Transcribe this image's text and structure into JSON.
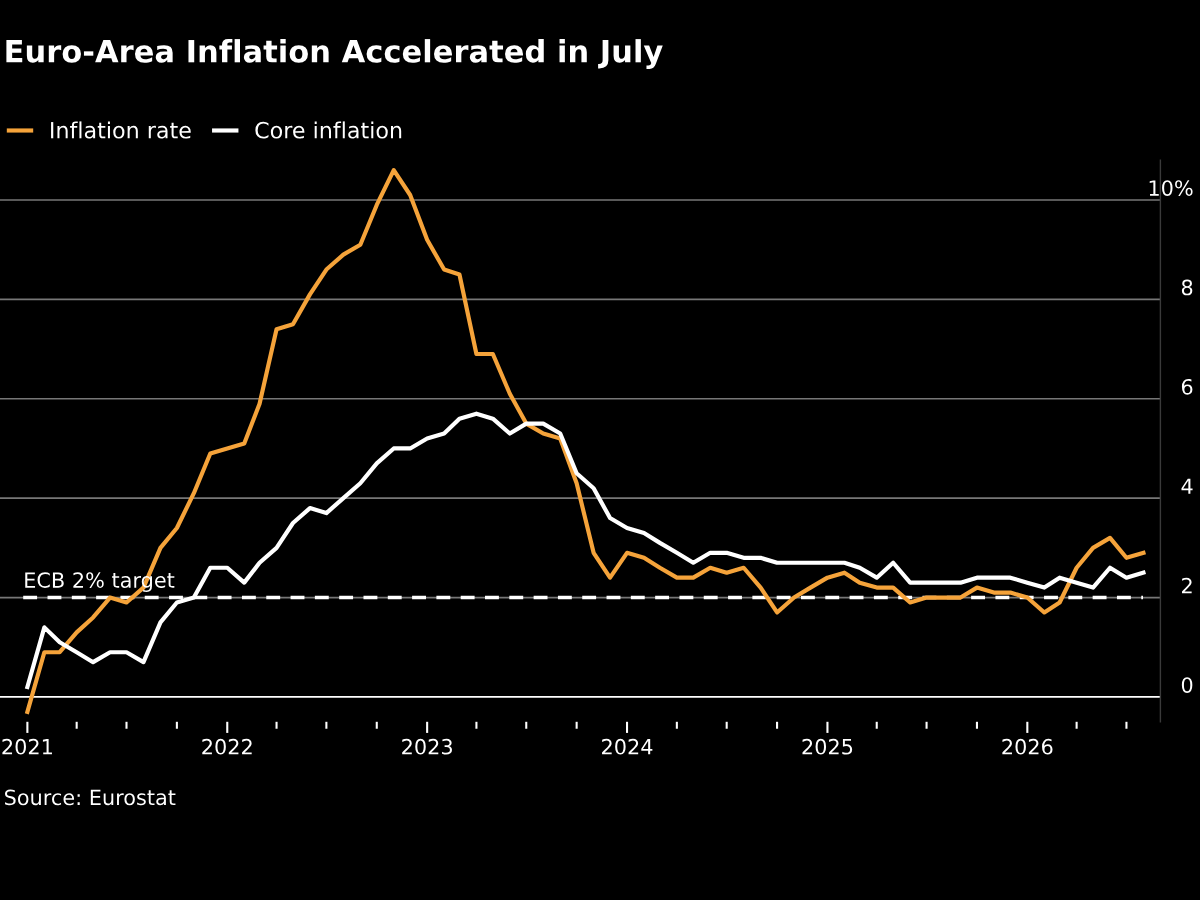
{
  "chart_data": {
    "type": "line",
    "title": "Euro-Area Inflation Accelerated in July",
    "x": [
      "2021-01",
      "2021-02",
      "2021-03",
      "2021-04",
      "2021-05",
      "2021-06",
      "2021-07",
      "2021-08",
      "2021-09",
      "2021-10",
      "2021-11",
      "2021-12",
      "2022-01",
      "2022-02",
      "2022-03",
      "2022-04",
      "2022-05",
      "2022-06",
      "2022-07",
      "2022-08",
      "2022-09",
      "2022-10",
      "2022-11",
      "2022-12",
      "2023-01",
      "2023-02",
      "2023-03",
      "2023-04",
      "2023-05",
      "2023-06",
      "2023-07",
      "2023-08",
      "2023-09",
      "2023-10",
      "2023-11",
      "2023-12",
      "2024-01",
      "2024-02",
      "2024-03",
      "2024-04",
      "2024-05",
      "2024-06",
      "2024-07",
      "2024-08",
      "2024-09",
      "2024-10",
      "2024-11",
      "2024-12",
      "2025-01",
      "2025-02",
      "2025-03",
      "2025-04",
      "2025-05",
      "2025-06",
      "2025-07",
      "2025-08",
      "2025-09",
      "2025-10",
      "2025-11",
      "2025-12",
      "2026-01",
      "2026-02",
      "2026-03",
      "2026-04",
      "2026-05",
      "2026-06",
      "2026-07",
      "2026-08"
    ],
    "series": [
      {
        "name": "Inflation rate",
        "color": "#f5a33a",
        "values": [
          -0.3,
          0.9,
          0.9,
          1.3,
          1.6,
          2.0,
          1.9,
          2.2,
          3.0,
          3.4,
          4.1,
          4.9,
          5.0,
          5.1,
          5.9,
          7.4,
          7.5,
          8.1,
          8.6,
          8.9,
          9.1,
          9.9,
          10.6,
          10.1,
          9.2,
          8.6,
          8.5,
          6.9,
          6.9,
          6.1,
          5.5,
          5.3,
          5.2,
          4.3,
          2.9,
          2.4,
          2.9,
          2.8,
          2.6,
          2.4,
          2.4,
          2.6,
          2.5,
          2.6,
          2.2,
          1.7,
          2.0,
          2.2,
          2.4,
          2.5,
          2.3,
          2.2,
          2.2,
          1.9,
          2.0,
          2.0,
          2.0,
          2.2,
          2.1,
          2.1,
          2.0,
          1.7,
          1.9,
          2.6,
          3.0,
          3.2,
          2.8,
          2.9
        ]
      },
      {
        "name": "Core inflation",
        "color": "#ffffff",
        "values": [
          0.2,
          1.4,
          1.1,
          0.9,
          0.7,
          0.9,
          0.9,
          0.7,
          1.5,
          1.9,
          2.0,
          2.6,
          2.6,
          2.3,
          2.7,
          3.0,
          3.5,
          3.8,
          3.7,
          4.0,
          4.3,
          4.7,
          5.0,
          5.0,
          5.2,
          5.3,
          5.6,
          5.7,
          5.6,
          5.3,
          5.5,
          5.5,
          5.3,
          4.5,
          4.2,
          3.6,
          3.4,
          3.3,
          3.1,
          2.9,
          2.7,
          2.9,
          2.9,
          2.8,
          2.8,
          2.7,
          2.7,
          2.7,
          2.7,
          2.7,
          2.6,
          2.4,
          2.7,
          2.3,
          2.3,
          2.3,
          2.3,
          2.4,
          2.4,
          2.4,
          2.3,
          2.2,
          2.4,
          2.3,
          2.2,
          2.6,
          2.4,
          2.5
        ]
      }
    ],
    "xlim": [
      "2020-11-12",
      "2026-09-01"
    ],
    "xticks": [
      {
        "value": "2021-01",
        "label": "2021"
      },
      {
        "value": "2021-04",
        "label": null
      },
      {
        "value": "2021-07",
        "label": null
      },
      {
        "value": "2021-10",
        "label": null
      },
      {
        "value": "2022-01",
        "label": "2022"
      },
      {
        "value": "2022-04",
        "label": null
      },
      {
        "value": "2022-07",
        "label": null
      },
      {
        "value": "2022-10",
        "label": null
      },
      {
        "value": "2023-01",
        "label": "2023"
      },
      {
        "value": "2023-04",
        "label": null
      },
      {
        "value": "2023-07",
        "label": null
      },
      {
        "value": "2023-10",
        "label": null
      },
      {
        "value": "2024-01",
        "label": "2024"
      },
      {
        "value": "2024-04",
        "label": null
      },
      {
        "value": "2024-07",
        "label": null
      },
      {
        "value": "2024-10",
        "label": null
      },
      {
        "value": "2025-01",
        "label": "2025"
      },
      {
        "value": "2025-04",
        "label": null
      },
      {
        "value": "2025-07",
        "label": null
      },
      {
        "value": "2025-10",
        "label": null
      },
      {
        "value": "2026-01",
        "label": "2026"
      },
      {
        "value": "2026-04",
        "label": null
      },
      {
        "value": "2026-07",
        "label": null
      }
    ],
    "ylim": [
      -0.5,
      10.8
    ],
    "yticks": [
      0,
      2,
      4,
      6,
      8,
      {
        "value": 10,
        "label": "10%"
      }
    ],
    "grid": "y",
    "legend": "top left",
    "line_style": "solid",
    "ref_lines": [
      {
        "axis": "y",
        "value": 2,
        "label": "ECB 2% target",
        "color": "#ffffff",
        "line_style": "dashed"
      }
    ],
    "annotations": [
      "Source: Eurostat"
    ]
  }
}
